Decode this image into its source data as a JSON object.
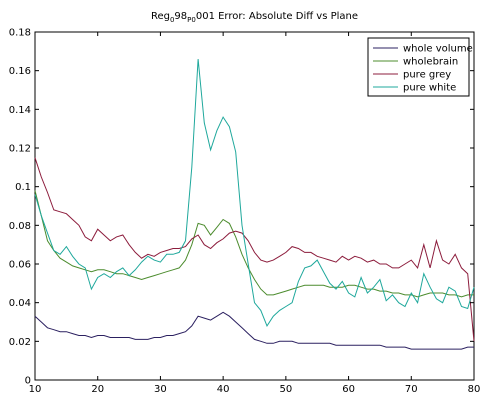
{
  "chart_data": {
    "type": "line",
    "title": {
      "parts": [
        {
          "text": "Reg",
          "sub": false
        },
        {
          "text": "0",
          "sub": true
        },
        {
          "text": "98",
          "sub": false
        },
        {
          "text": "P0",
          "sub": true
        },
        {
          "text": "001 Error: Absolute Diff vs Plane",
          "sub": false
        }
      ]
    },
    "xlabel": "",
    "ylabel": "",
    "xlim": [
      10,
      80
    ],
    "ylim": [
      0,
      0.18
    ],
    "xticks": [
      10,
      20,
      30,
      40,
      50,
      60,
      70,
      80
    ],
    "yticks": [
      0,
      0.02,
      0.04,
      0.06,
      0.08,
      0.1,
      0.12,
      0.14,
      0.16,
      0.18
    ],
    "ytick_labels": [
      "0",
      "0.02",
      "0.04",
      "0.06",
      "0.08",
      "0.1",
      "0.12",
      "0.14",
      "0.16",
      "0.18"
    ],
    "grid": false,
    "legend_position": "top-right",
    "x": [
      10,
      11,
      12,
      13,
      14,
      15,
      16,
      17,
      18,
      19,
      20,
      21,
      22,
      23,
      24,
      25,
      26,
      27,
      28,
      29,
      30,
      31,
      32,
      33,
      34,
      35,
      36,
      37,
      38,
      39,
      40,
      41,
      42,
      43,
      44,
      45,
      46,
      47,
      48,
      49,
      50,
      51,
      52,
      53,
      54,
      55,
      56,
      57,
      58,
      59,
      60,
      61,
      62,
      63,
      64,
      65,
      66,
      67,
      68,
      69,
      70,
      71,
      72,
      73,
      74,
      75,
      76,
      77,
      78,
      79,
      80
    ],
    "series": [
      {
        "name": "whole volume",
        "color": "#2b2060",
        "values": [
          0.033,
          0.03,
          0.027,
          0.026,
          0.025,
          0.025,
          0.024,
          0.023,
          0.023,
          0.022,
          0.023,
          0.023,
          0.022,
          0.022,
          0.022,
          0.022,
          0.021,
          0.021,
          0.021,
          0.022,
          0.022,
          0.023,
          0.023,
          0.024,
          0.025,
          0.028,
          0.033,
          0.032,
          0.031,
          0.033,
          0.035,
          0.033,
          0.03,
          0.027,
          0.024,
          0.021,
          0.02,
          0.019,
          0.019,
          0.02,
          0.02,
          0.02,
          0.019,
          0.019,
          0.019,
          0.019,
          0.019,
          0.019,
          0.018,
          0.018,
          0.018,
          0.018,
          0.018,
          0.018,
          0.018,
          0.018,
          0.017,
          0.017,
          0.017,
          0.017,
          0.016,
          0.016,
          0.016,
          0.016,
          0.016,
          0.016,
          0.016,
          0.016,
          0.016,
          0.017,
          0.017
        ]
      },
      {
        "name": "wholebrain",
        "color": "#4c8c2e",
        "values": [
          0.098,
          0.085,
          0.072,
          0.067,
          0.063,
          0.061,
          0.059,
          0.058,
          0.057,
          0.056,
          0.057,
          0.057,
          0.056,
          0.055,
          0.055,
          0.054,
          0.053,
          0.052,
          0.053,
          0.054,
          0.055,
          0.056,
          0.057,
          0.058,
          0.062,
          0.07,
          0.081,
          0.08,
          0.075,
          0.079,
          0.083,
          0.081,
          0.074,
          0.065,
          0.058,
          0.052,
          0.047,
          0.044,
          0.044,
          0.045,
          0.046,
          0.047,
          0.048,
          0.049,
          0.049,
          0.049,
          0.049,
          0.048,
          0.048,
          0.048,
          0.049,
          0.049,
          0.048,
          0.047,
          0.047,
          0.046,
          0.046,
          0.045,
          0.045,
          0.044,
          0.044,
          0.043,
          0.044,
          0.045,
          0.045,
          0.045,
          0.044,
          0.044,
          0.043,
          0.044,
          0.044
        ]
      },
      {
        "name": "pure grey",
        "color": "#8c1c3c",
        "values": [
          0.115,
          0.105,
          0.097,
          0.088,
          0.087,
          0.086,
          0.083,
          0.08,
          0.074,
          0.072,
          0.078,
          0.075,
          0.072,
          0.074,
          0.075,
          0.07,
          0.066,
          0.063,
          0.065,
          0.064,
          0.066,
          0.067,
          0.068,
          0.068,
          0.069,
          0.073,
          0.075,
          0.07,
          0.068,
          0.071,
          0.073,
          0.076,
          0.077,
          0.076,
          0.072,
          0.066,
          0.062,
          0.061,
          0.062,
          0.064,
          0.066,
          0.069,
          0.068,
          0.066,
          0.066,
          0.064,
          0.063,
          0.062,
          0.061,
          0.064,
          0.062,
          0.064,
          0.063,
          0.061,
          0.062,
          0.06,
          0.06,
          0.058,
          0.058,
          0.06,
          0.062,
          0.058,
          0.07,
          0.058,
          0.072,
          0.062,
          0.06,
          0.065,
          0.058,
          0.055,
          0.02
        ]
      },
      {
        "name": "pure white",
        "color": "#1fa89c",
        "values": [
          0.096,
          0.085,
          0.076,
          0.067,
          0.065,
          0.069,
          0.064,
          0.06,
          0.058,
          0.047,
          0.053,
          0.055,
          0.053,
          0.056,
          0.058,
          0.054,
          0.057,
          0.061,
          0.064,
          0.062,
          0.061,
          0.065,
          0.065,
          0.066,
          0.072,
          0.11,
          0.166,
          0.133,
          0.119,
          0.129,
          0.136,
          0.131,
          0.118,
          0.08,
          0.06,
          0.04,
          0.036,
          0.028,
          0.033,
          0.036,
          0.038,
          0.04,
          0.051,
          0.058,
          0.059,
          0.062,
          0.056,
          0.05,
          0.047,
          0.051,
          0.045,
          0.043,
          0.053,
          0.045,
          0.048,
          0.052,
          0.041,
          0.044,
          0.04,
          0.038,
          0.045,
          0.04,
          0.055,
          0.048,
          0.042,
          0.04,
          0.048,
          0.046,
          0.038,
          0.037,
          0.048
        ]
      }
    ]
  }
}
